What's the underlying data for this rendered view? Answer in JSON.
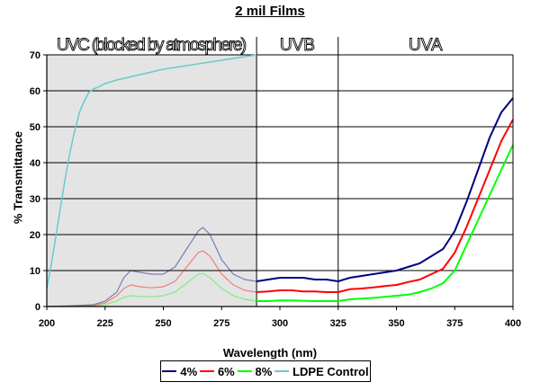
{
  "chart_data": {
    "type": "line",
    "title": "2 mil Films",
    "xlabel": "Wavelength (nm)",
    "ylabel": "% Transmittance",
    "xlim": [
      200,
      400
    ],
    "ylim": [
      0,
      70
    ],
    "xticks": [
      200,
      225,
      250,
      275,
      300,
      325,
      350,
      375,
      400
    ],
    "yticks": [
      0,
      10,
      20,
      30,
      40,
      50,
      60,
      70
    ],
    "grid": true,
    "legend_position": "bottom",
    "regions": [
      {
        "label": "UVC (blocked by atmosphere)",
        "x": [
          200,
          290
        ],
        "shaded": true
      },
      {
        "label": "UVB",
        "x": [
          290,
          325
        ],
        "shaded": false
      },
      {
        "label": "UVA",
        "x": [
          325,
          400
        ],
        "shaded": false
      }
    ],
    "series": [
      {
        "name": "4%",
        "color": "#000080",
        "x": [
          200,
          210,
          220,
          225,
          230,
          233,
          236,
          240,
          245,
          250,
          255,
          260,
          265,
          267,
          270,
          275,
          280,
          285,
          290,
          295,
          300,
          305,
          310,
          315,
          320,
          325,
          330,
          335,
          340,
          345,
          350,
          355,
          360,
          365,
          370,
          375,
          380,
          385,
          390,
          395,
          400
        ],
        "y": [
          0,
          0.2,
          0.5,
          1.5,
          4,
          8,
          10,
          9.5,
          9,
          9,
          11,
          16,
          21,
          22,
          20,
          13,
          9,
          7.5,
          7,
          7.5,
          8,
          8,
          8,
          7.5,
          7.5,
          7,
          8,
          8.5,
          9,
          9.5,
          10,
          11,
          12,
          14,
          16,
          21,
          29,
          38,
          47,
          54,
          58
        ]
      },
      {
        "name": "6%",
        "color": "#ff0000",
        "x": [
          200,
          210,
          220,
          225,
          230,
          233,
          236,
          240,
          245,
          250,
          255,
          260,
          265,
          267,
          270,
          275,
          280,
          285,
          290,
          295,
          300,
          305,
          310,
          315,
          320,
          325,
          330,
          335,
          340,
          345,
          350,
          355,
          360,
          365,
          370,
          375,
          380,
          385,
          390,
          395,
          400
        ],
        "y": [
          0,
          0.1,
          0.3,
          1,
          3,
          5,
          6,
          5.5,
          5.2,
          5.5,
          7,
          11,
          15,
          15.5,
          14,
          9,
          6,
          4.5,
          4,
          4.2,
          4.5,
          4.5,
          4.2,
          4.2,
          4,
          4,
          4.8,
          5,
          5.3,
          5.7,
          6,
          6.8,
          7.5,
          9,
          10.5,
          15,
          22,
          30,
          38,
          46,
          52
        ]
      },
      {
        "name": "8%",
        "color": "#00ff00",
        "x": [
          200,
          210,
          220,
          225,
          230,
          233,
          236,
          240,
          245,
          250,
          255,
          260,
          265,
          267,
          270,
          275,
          280,
          285,
          290,
          295,
          300,
          305,
          310,
          315,
          320,
          325,
          330,
          335,
          340,
          345,
          350,
          355,
          360,
          365,
          370,
          375,
          380,
          385,
          390,
          395,
          400
        ],
        "y": [
          0,
          0.1,
          0.2,
          0.5,
          1.5,
          2.5,
          3,
          2.8,
          2.7,
          3,
          4,
          6.5,
          9,
          9.2,
          8,
          5,
          3,
          2,
          1.5,
          1.5,
          1.7,
          1.7,
          1.6,
          1.5,
          1.5,
          1.5,
          2,
          2.2,
          2.4,
          2.7,
          3,
          3.3,
          4,
          5,
          6.5,
          10,
          17,
          24,
          31,
          38,
          45
        ]
      },
      {
        "name": "LDPE Control",
        "color": "#66cccc",
        "x": [
          200,
          202,
          204,
          206,
          208,
          210,
          212,
          214,
          216,
          218,
          220,
          222,
          225,
          230,
          240,
          250,
          260,
          270,
          280,
          290
        ],
        "y": [
          5,
          12,
          20,
          28,
          36,
          43,
          49,
          54,
          57,
          59.5,
          60.5,
          61,
          62,
          63,
          64.5,
          66,
          67,
          68,
          69,
          70
        ]
      }
    ]
  }
}
